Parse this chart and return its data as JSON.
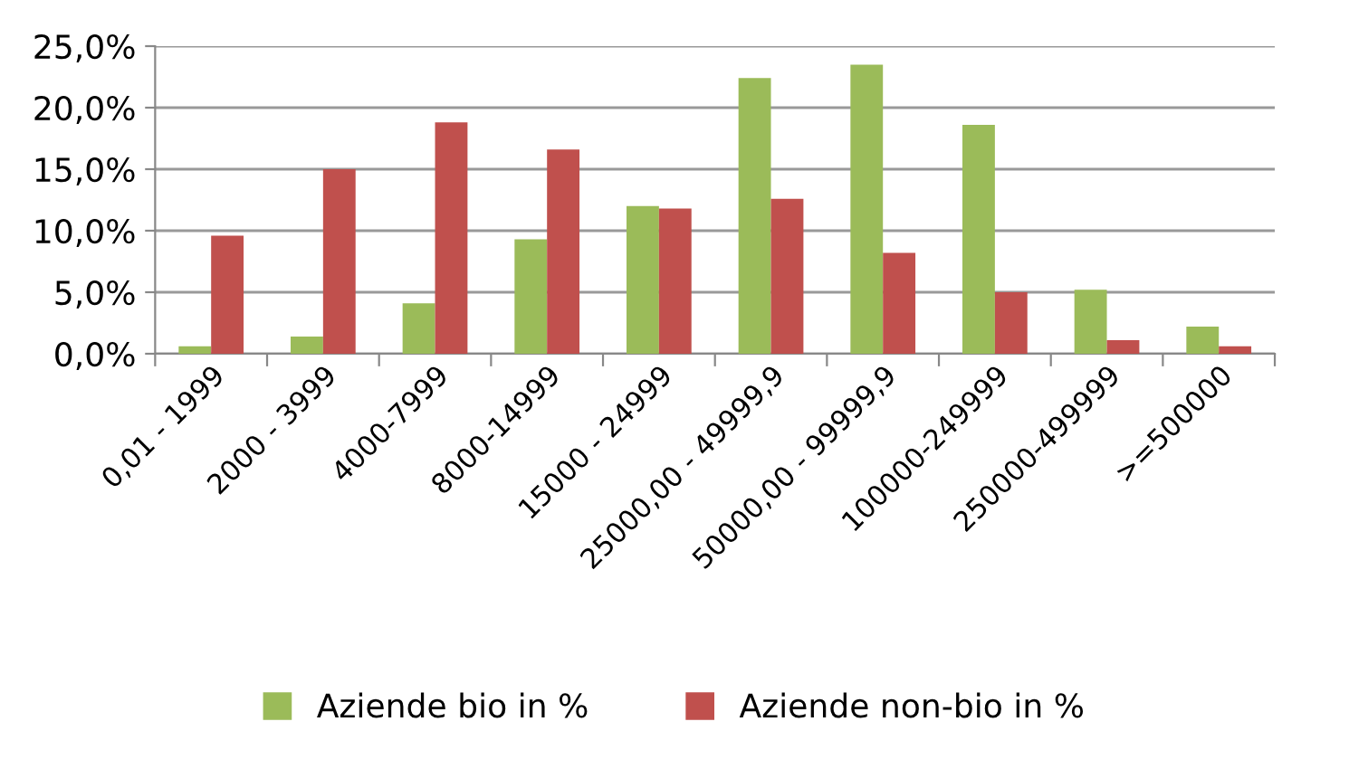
{
  "chart_data": {
    "type": "bar",
    "categories": [
      "0,01 - 1999",
      "2000 - 3999",
      "4000-7999",
      "8000-14999",
      "15000 - 24999",
      "25000,00 - 49999,9",
      "50000,00 - 99999,9",
      "100000-249999",
      "250000-499999",
      ">=500000"
    ],
    "series": [
      {
        "name": "Aziende bio in %",
        "color": "#9bbb59",
        "values": [
          0.6,
          1.4,
          4.1,
          9.3,
          12.0,
          22.4,
          23.5,
          18.6,
          5.2,
          2.2
        ]
      },
      {
        "name": "Aziende non-bio in %",
        "color": "#c0504d",
        "values": [
          9.6,
          15.0,
          18.8,
          16.6,
          11.8,
          12.6,
          8.2,
          5.0,
          1.1,
          0.6
        ]
      }
    ],
    "ylim": [
      0,
      25
    ],
    "yticks": [
      {
        "value": 0,
        "label": "0,0%"
      },
      {
        "value": 5,
        "label": "5,0%"
      },
      {
        "value": 10,
        "label": "10,0%"
      },
      {
        "value": 15,
        "label": "15,0%"
      },
      {
        "value": 20,
        "label": "20,0%"
      },
      {
        "value": 25,
        "label": "25,0%"
      }
    ],
    "grid": "y",
    "legend": "bottom"
  }
}
